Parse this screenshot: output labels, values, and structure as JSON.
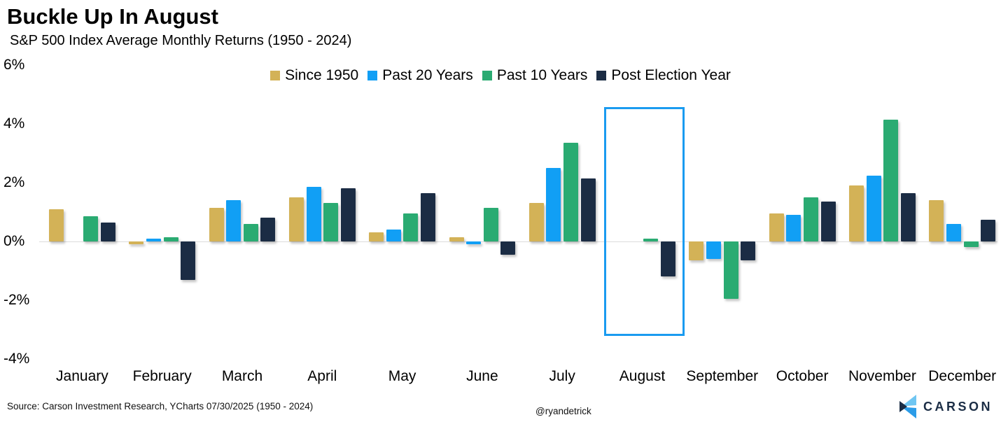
{
  "header": {
    "title": "Buckle Up In August",
    "subtitle": "S&P 500 Index Average Monthly Returns (1950 - 2024)"
  },
  "chart_data": {
    "type": "bar",
    "title": "Buckle Up In August",
    "subtitle": "S&P 500 Index Average Monthly Returns (1950 - 2024)",
    "categories": [
      "January",
      "February",
      "March",
      "April",
      "May",
      "June",
      "July",
      "August",
      "September",
      "October",
      "November",
      "December"
    ],
    "series": [
      {
        "name": "Since 1950",
        "color": "#d3b257",
        "values": [
          1.1,
          -0.1,
          1.15,
          1.5,
          0.3,
          0.15,
          1.3,
          0.0,
          -0.65,
          0.95,
          1.9,
          1.4
        ]
      },
      {
        "name": "Past 20 Years",
        "color": "#119ff5",
        "values": [
          0.0,
          0.1,
          1.4,
          1.85,
          0.4,
          -0.1,
          2.5,
          0.0,
          -0.6,
          0.9,
          2.25,
          0.6
        ]
      },
      {
        "name": "Past 10 Years",
        "color": "#2aab72",
        "values": [
          0.85,
          0.15,
          0.6,
          1.3,
          0.95,
          1.15,
          3.35,
          0.1,
          -1.95,
          1.5,
          4.15,
          -0.2
        ]
      },
      {
        "name": "Post Election Year",
        "color": "#1b2c44",
        "values": [
          0.65,
          -1.3,
          0.8,
          1.8,
          1.65,
          -0.45,
          2.15,
          -1.2,
          -0.65,
          1.35,
          1.65,
          0.75
        ]
      }
    ],
    "y_ticks": [
      6,
      4,
      2,
      0,
      -2,
      -4
    ],
    "y_tick_suffix": "%",
    "ylim": [
      -4,
      6
    ],
    "grid": false,
    "legend_position": "top",
    "highlight_month": "August",
    "highlight_color": "#1a9bf0",
    "unit": "percent"
  },
  "footer": {
    "source": "Source: Carson Investment Research, YCharts 07/30/2025 (1950 - 2024)",
    "handle": "@ryandetrick",
    "brand": "CARSON"
  },
  "brand_colors": {
    "light_blue": "#6fc6f2",
    "mid_blue": "#2b9ce8",
    "navy": "#1b2d45"
  }
}
